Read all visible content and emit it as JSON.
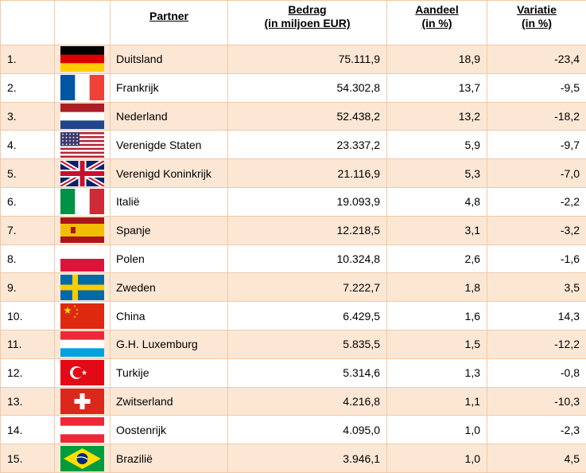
{
  "header": {
    "partner": "Partner",
    "amount": [
      "Bedrag",
      "(in miljoen EUR)"
    ],
    "share": [
      "Aandeel",
      "(in %)"
    ],
    "variation": [
      "Variatie",
      "(in %)"
    ]
  },
  "rows": [
    {
      "rank": "1.",
      "flag": "germany-flag-icon",
      "partner": "Duitsland",
      "amount": "75.111,9",
      "share": "18,9",
      "variation": "-23,4"
    },
    {
      "rank": "2.",
      "flag": "france-flag-icon",
      "partner": "Frankrijk",
      "amount": "54.302,8",
      "share": "13,7",
      "variation": "-9,5"
    },
    {
      "rank": "3.",
      "flag": "netherlands-flag-icon",
      "partner": "Nederland",
      "amount": "52.438,2",
      "share": "13,2",
      "variation": "-18,2"
    },
    {
      "rank": "4.",
      "flag": "usa-flag-icon",
      "partner": "Verenigde Staten",
      "amount": "23.337,2",
      "share": "5,9",
      "variation": "-9,7"
    },
    {
      "rank": "5.",
      "flag": "uk-flag-icon",
      "partner": "Verenigd Koninkrijk",
      "amount": "21.116,9",
      "share": "5,3",
      "variation": "-7,0"
    },
    {
      "rank": "6.",
      "flag": "italy-flag-icon",
      "partner": "Italië",
      "amount": "19.093,9",
      "share": "4,8",
      "variation": "-2,2"
    },
    {
      "rank": "7.",
      "flag": "spain-flag-icon",
      "partner": "Spanje",
      "amount": "12.218,5",
      "share": "3,1",
      "variation": "-3,2"
    },
    {
      "rank": "8.",
      "flag": "poland-flag-icon",
      "partner": "Polen",
      "amount": "10.324,8",
      "share": "2,6",
      "variation": "-1,6"
    },
    {
      "rank": "9.",
      "flag": "sweden-flag-icon",
      "partner": "Zweden",
      "amount": "7.222,7",
      "share": "1,8",
      "variation": "3,5"
    },
    {
      "rank": "10.",
      "flag": "china-flag-icon",
      "partner": "China",
      "amount": "6.429,5",
      "share": "1,6",
      "variation": "14,3"
    },
    {
      "rank": "11.",
      "flag": "luxembourg-flag-icon",
      "partner": "G.H. Luxemburg",
      "amount": "5.835,5",
      "share": "1,5",
      "variation": "-12,2"
    },
    {
      "rank": "12.",
      "flag": "turkey-flag-icon",
      "partner": "Turkije",
      "amount": "5.314,6",
      "share": "1,3",
      "variation": "-0,8"
    },
    {
      "rank": "13.",
      "flag": "switzerland-flag-icon",
      "partner": "Zwitserland",
      "amount": "4.216,8",
      "share": "1,1",
      "variation": "-10,3"
    },
    {
      "rank": "14.",
      "flag": "austria-flag-icon",
      "partner": "Oostenrijk",
      "amount": "4.095,0",
      "share": "1,0",
      "variation": "-2,3"
    },
    {
      "rank": "15.",
      "flag": "brazil-flag-icon",
      "partner": "Brazilië",
      "amount": "3.946,1",
      "share": "1,0",
      "variation": "4,5"
    }
  ],
  "colors": {
    "row_band": "#fce7d5",
    "border": "#f2c8a6"
  }
}
